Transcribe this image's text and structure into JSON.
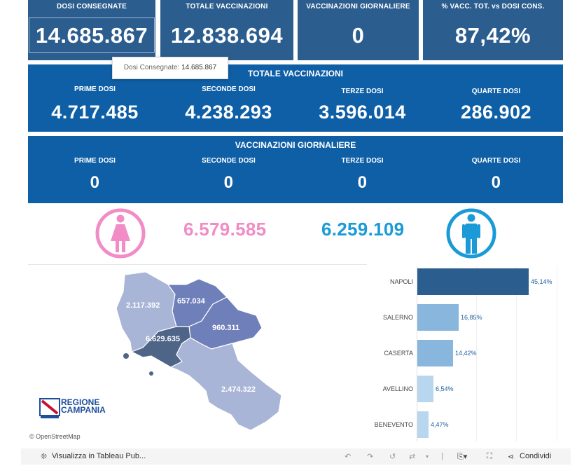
{
  "kpis": [
    {
      "title": "DOSI  CONSEGNATE",
      "value": "14.685.867"
    },
    {
      "title": "TOTALE VACCINAZIONI",
      "value": "12.838.694"
    },
    {
      "title": "VACCINAZIONI GIORNALIERE",
      "value": "0"
    },
    {
      "title": "% VACC. TOT. vs DOSI CONS.",
      "value": "87,42%"
    }
  ],
  "tooltip": {
    "label": "Dosi Consegnate:",
    "value": "14.685.867"
  },
  "totale": {
    "title": "TOTALE VACCINAZIONI",
    "items": [
      {
        "label": "PRIME DOSI",
        "value": "4.717.485"
      },
      {
        "label": "SECONDE DOSI",
        "value": "4.238.293"
      },
      {
        "label": "TERZE DOSI",
        "value": "3.596.014"
      },
      {
        "label": "QUARTE DOSI",
        "value": "286.902"
      }
    ]
  },
  "giornaliere": {
    "title": "VACCINAZIONI GIORNALIERE",
    "items": [
      {
        "label": "PRIME DOSI",
        "value": "0"
      },
      {
        "label": "SECONDE DOSI",
        "value": "0"
      },
      {
        "label": "TERZE DOSI",
        "value": "0"
      },
      {
        "label": "QUARTE DOSI",
        "value": "0"
      }
    ]
  },
  "gender": {
    "female": "6.579.585",
    "male": "6.259.109",
    "female_color": "#f28cc6",
    "male_color": "#1a9ad6"
  },
  "map": {
    "provinces": {
      "caserta": "2.117.392",
      "benevento": "657.034",
      "avellino": "960.311",
      "napoli": "6.629.635",
      "salerno": "2.474.322"
    },
    "logo": {
      "line1": "REGIONE",
      "line2": "CAMPANIA"
    },
    "credit": "© OpenStreetMap"
  },
  "provinces_bar": [
    {
      "name": "NAPOLI",
      "pct": "45,14%",
      "value": 45.14,
      "color": "#2c5d8f"
    },
    {
      "name": "SALERNO",
      "pct": "16,85%",
      "value": 16.85,
      "color": "#88b6dd"
    },
    {
      "name": "CASERTA",
      "pct": "14,42%",
      "value": 14.42,
      "color": "#88b6dd"
    },
    {
      "name": "AVELLINO",
      "pct": "6,54%",
      "value": 6.54,
      "color": "#b8d6ee"
    },
    {
      "name": "BENEVENTO",
      "pct": "4,47%",
      "value": 4.47,
      "color": "#b8d6ee"
    }
  ],
  "footer": {
    "view_label": "Visualizza in Tableau Pub...",
    "share_label": "Condividi"
  }
}
